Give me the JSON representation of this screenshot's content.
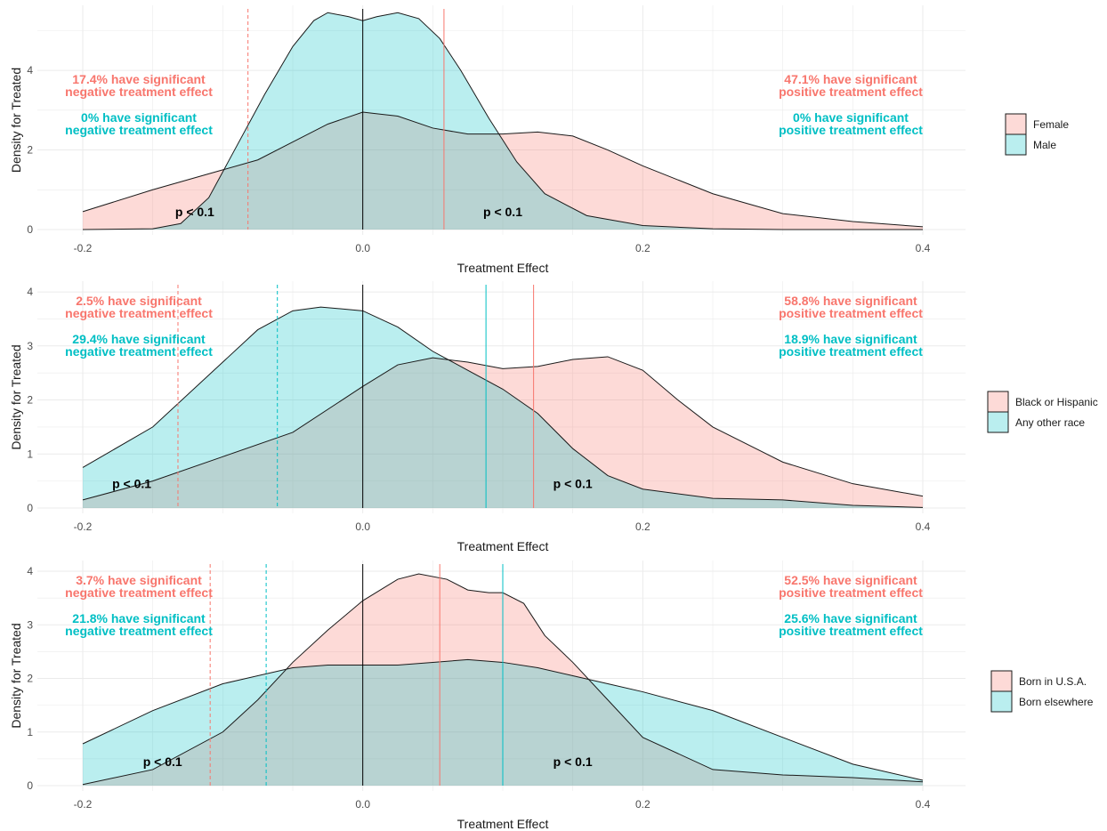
{
  "colors": {
    "pink": "#F8766D",
    "teal": "#00BFC4",
    "pink_text": "#F8766D",
    "teal_text": "#00BFC4",
    "overlap": "#c9ccca"
  },
  "common": {
    "xlabel": "Treatment Effect",
    "ylabel": "Density for Treated",
    "x_ticks": [
      "-0.2",
      "0.0",
      "0.2",
      "0.4"
    ],
    "p_label": "p < 0.1"
  },
  "chart_data": [
    {
      "type": "area",
      "xlabel": "Treatment Effect",
      "ylabel": "Density for Treated",
      "xlim": [
        -0.2,
        0.4
      ],
      "ylim": [
        0,
        5.5
      ],
      "y_ticks": [
        "0",
        "2",
        "4"
      ],
      "legend_position": "right",
      "series": [
        {
          "name": "Female",
          "color": "pink",
          "x": [
            -0.2,
            -0.15,
            -0.1,
            -0.075,
            -0.05,
            -0.025,
            0,
            0.025,
            0.05,
            0.075,
            0.1,
            0.125,
            0.15,
            0.175,
            0.2,
            0.25,
            0.3,
            0.35,
            0.4
          ],
          "y": [
            0.45,
            1.0,
            1.5,
            1.75,
            2.2,
            2.65,
            2.95,
            2.85,
            2.55,
            2.4,
            2.4,
            2.45,
            2.35,
            2.0,
            1.6,
            0.9,
            0.4,
            0.2,
            0.07
          ]
        },
        {
          "name": "Male",
          "color": "teal",
          "x": [
            -0.2,
            -0.15,
            -0.13,
            -0.11,
            -0.09,
            -0.07,
            -0.05,
            -0.035,
            -0.025,
            -0.01,
            0,
            0.01,
            0.025,
            0.04,
            0.055,
            0.07,
            0.09,
            0.11,
            0.13,
            0.16,
            0.2,
            0.25,
            0.3,
            0.35,
            0.4
          ],
          "y": [
            0,
            0.02,
            0.15,
            0.8,
            2.1,
            3.4,
            4.6,
            5.25,
            5.45,
            5.35,
            5.25,
            5.35,
            5.45,
            5.3,
            4.8,
            4.0,
            2.8,
            1.7,
            0.9,
            0.35,
            0.1,
            0.02,
            0,
            0,
            0
          ]
        }
      ],
      "vlines": [
        {
          "x": 0.0,
          "color": "#000000",
          "dash": false
        },
        {
          "x": -0.082,
          "color": "pink",
          "dash": true
        },
        {
          "x": 0.058,
          "color": "pink",
          "dash": false
        }
      ],
      "annotations": {
        "left": [
          {
            "line1": "17.4% have significant",
            "line2": "negative treatment effect",
            "color": "pink"
          },
          {
            "line1": "0% have significant",
            "line2": "negative treatment effect",
            "color": "teal"
          }
        ],
        "right": [
          {
            "line1": "47.1% have significant",
            "line2": "positive treatment effect",
            "color": "pink"
          },
          {
            "line1": "0% have significant",
            "line2": "positive treatment effect",
            "color": "teal"
          }
        ]
      },
      "p_labels": [
        {
          "x": -0.12,
          "y": 0.45
        },
        {
          "x": 0.1,
          "y": 0.45
        }
      ]
    },
    {
      "type": "area",
      "xlabel": "Treatment Effect",
      "ylabel": "Density for Treated",
      "xlim": [
        -0.2,
        0.4
      ],
      "ylim": [
        0,
        4.1
      ],
      "y_ticks": [
        "0",
        "1",
        "2",
        "3",
        "4"
      ],
      "legend_position": "right",
      "series": [
        {
          "name": "Black or Hispanic",
          "color": "pink",
          "x": [
            -0.2,
            -0.15,
            -0.1,
            -0.05,
            0,
            0.025,
            0.05,
            0.075,
            0.1,
            0.125,
            0.15,
            0.175,
            0.2,
            0.225,
            0.25,
            0.3,
            0.35,
            0.4
          ],
          "y": [
            0.15,
            0.5,
            0.95,
            1.4,
            2.25,
            2.65,
            2.78,
            2.7,
            2.58,
            2.62,
            2.75,
            2.8,
            2.55,
            2.0,
            1.5,
            0.85,
            0.45,
            0.22
          ]
        },
        {
          "name": "Any other race",
          "color": "teal",
          "x": [
            -0.2,
            -0.15,
            -0.1,
            -0.075,
            -0.05,
            -0.03,
            0,
            0.025,
            0.05,
            0.075,
            0.1,
            0.125,
            0.15,
            0.175,
            0.2,
            0.25,
            0.3,
            0.35,
            0.4
          ],
          "y": [
            0.75,
            1.5,
            2.7,
            3.3,
            3.65,
            3.72,
            3.65,
            3.35,
            2.9,
            2.55,
            2.2,
            1.75,
            1.1,
            0.6,
            0.35,
            0.18,
            0.15,
            0.05,
            0.01
          ]
        }
      ],
      "vlines": [
        {
          "x": 0.0,
          "color": "#000000",
          "dash": false
        },
        {
          "x": -0.132,
          "color": "pink",
          "dash": true
        },
        {
          "x": -0.061,
          "color": "teal",
          "dash": true
        },
        {
          "x": 0.088,
          "color": "teal",
          "dash": false
        },
        {
          "x": 0.122,
          "color": "pink",
          "dash": false
        }
      ],
      "annotations": {
        "left": [
          {
            "line1": "2.5% have significant",
            "line2": "negative treatment effect",
            "color": "pink"
          },
          {
            "line1": "29.4% have significant",
            "line2": "negative treatment effect",
            "color": "teal"
          }
        ],
        "right": [
          {
            "line1": "58.8% have significant",
            "line2": "positive treatment effect",
            "color": "pink"
          },
          {
            "line1": "18.9% have significant",
            "line2": "positive treatment effect",
            "color": "teal"
          }
        ]
      },
      "p_labels": [
        {
          "x": -0.165,
          "y": 0.45
        },
        {
          "x": 0.15,
          "y": 0.45
        }
      ]
    },
    {
      "type": "area",
      "xlabel": "Treatment Effect",
      "ylabel": "Density for Treated",
      "xlim": [
        -0.2,
        0.4
      ],
      "ylim": [
        0,
        4.1
      ],
      "y_ticks": [
        "0",
        "1",
        "2",
        "3",
        "4"
      ],
      "legend_position": "right",
      "series": [
        {
          "name": "Born in U.S.A.",
          "color": "pink",
          "x": [
            -0.2,
            -0.15,
            -0.1,
            -0.075,
            -0.05,
            -0.025,
            0,
            0.025,
            0.04,
            0.06,
            0.075,
            0.09,
            0.1,
            0.115,
            0.13,
            0.15,
            0.175,
            0.2,
            0.25,
            0.3,
            0.35,
            0.4
          ],
          "y": [
            0.02,
            0.3,
            1.0,
            1.6,
            2.3,
            2.9,
            3.45,
            3.85,
            3.95,
            3.85,
            3.65,
            3.6,
            3.6,
            3.4,
            2.8,
            2.3,
            1.6,
            0.9,
            0.3,
            0.2,
            0.15,
            0.07
          ]
        },
        {
          "name": "Born elsewhere",
          "color": "teal",
          "x": [
            -0.2,
            -0.15,
            -0.1,
            -0.05,
            -0.025,
            0,
            0.025,
            0.05,
            0.075,
            0.1,
            0.125,
            0.15,
            0.175,
            0.2,
            0.25,
            0.3,
            0.35,
            0.4
          ],
          "y": [
            0.78,
            1.4,
            1.9,
            2.2,
            2.25,
            2.25,
            2.25,
            2.3,
            2.35,
            2.3,
            2.2,
            2.05,
            1.9,
            1.75,
            1.4,
            0.9,
            0.4,
            0.1
          ]
        }
      ],
      "vlines": [
        {
          "x": 0.0,
          "color": "#000000",
          "dash": false
        },
        {
          "x": -0.109,
          "color": "pink",
          "dash": true
        },
        {
          "x": -0.069,
          "color": "teal",
          "dash": true
        },
        {
          "x": 0.055,
          "color": "pink",
          "dash": false
        },
        {
          "x": 0.1,
          "color": "teal",
          "dash": false
        }
      ],
      "annotations": {
        "left": [
          {
            "line1": "3.7% have significant",
            "line2": "negative treatment effect",
            "color": "pink"
          },
          {
            "line1": "21.8% have significant",
            "line2": "negative treatment effect",
            "color": "teal"
          }
        ],
        "right": [
          {
            "line1": "52.5% have significant",
            "line2": "positive treatment effect",
            "color": "pink"
          },
          {
            "line1": "25.6% have significant",
            "line2": "positive treatment effect",
            "color": "teal"
          }
        ]
      },
      "p_labels": [
        {
          "x": -0.143,
          "y": 0.45
        },
        {
          "x": 0.15,
          "y": 0.45
        }
      ]
    }
  ]
}
